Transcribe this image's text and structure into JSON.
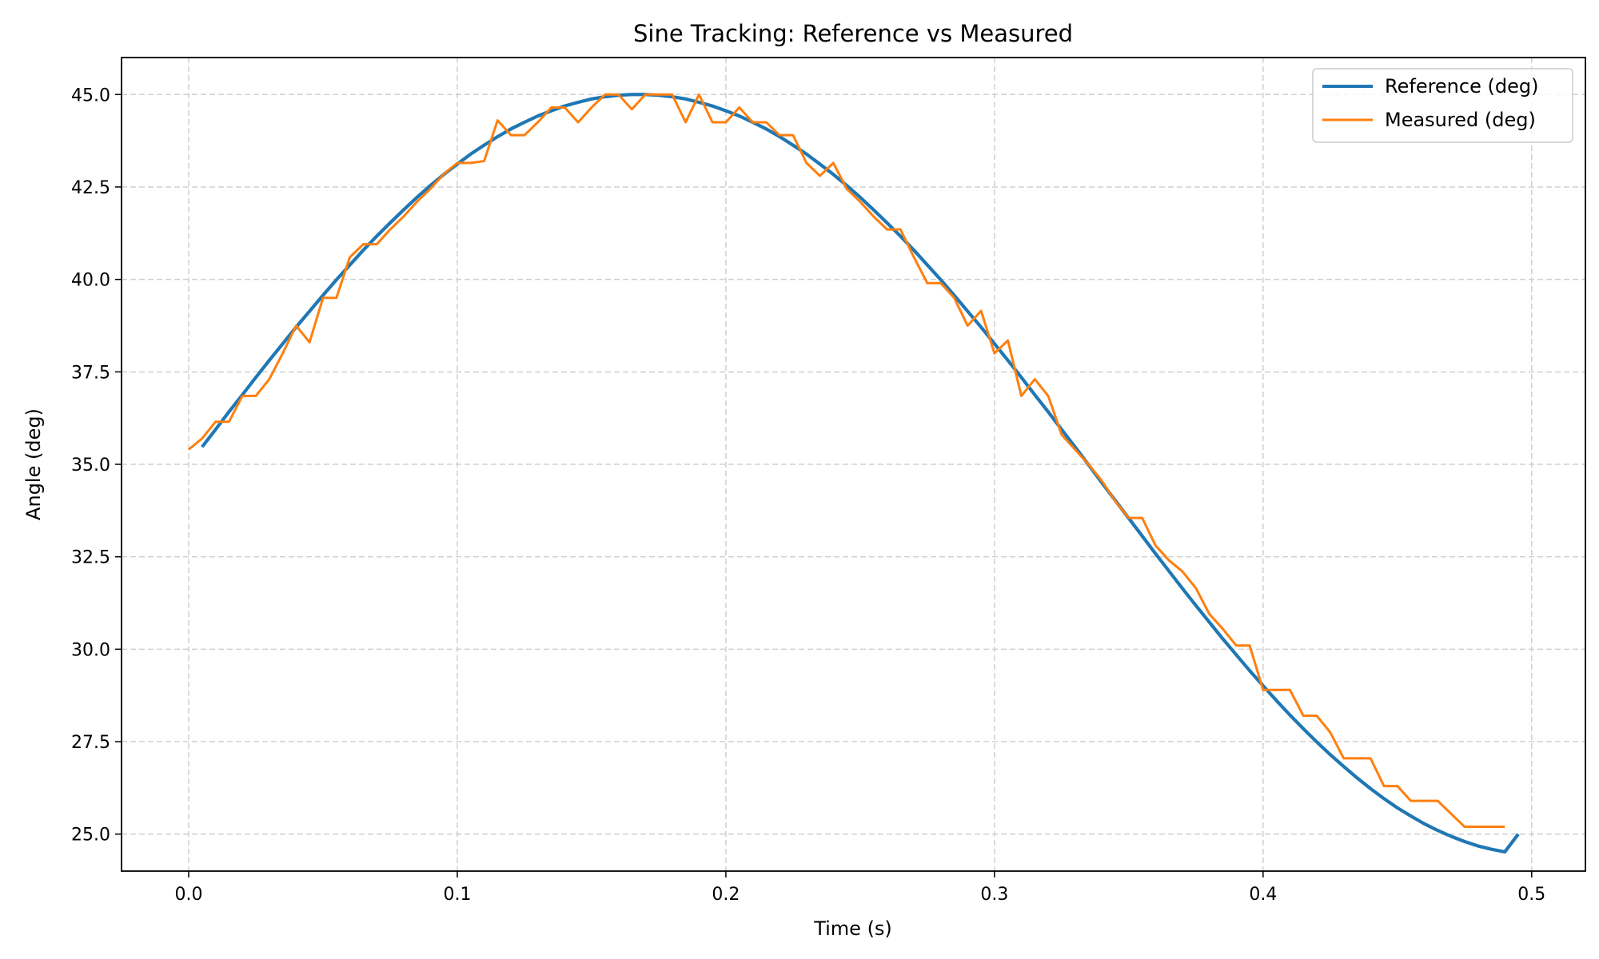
{
  "chart_data": {
    "type": "line",
    "title": "Sine Tracking: Reference vs Measured",
    "xlabel": "Time (s)",
    "ylabel": "Angle (deg)",
    "xlim": [
      -0.025,
      0.52
    ],
    "ylim": [
      24.0,
      46.0
    ],
    "xticks": [
      0.0,
      0.1,
      0.2,
      0.3,
      0.4,
      0.5
    ],
    "xtick_labels": [
      "0.0",
      "0.1",
      "0.2",
      "0.3",
      "0.4",
      "0.5"
    ],
    "yticks": [
      25.0,
      27.5,
      30.0,
      32.5,
      35.0,
      37.5,
      40.0,
      42.5,
      45.0
    ],
    "ytick_labels": [
      "25.0",
      "27.5",
      "30.0",
      "32.5",
      "35.0",
      "37.5",
      "40.0",
      "42.5",
      "45.0"
    ],
    "grid": true,
    "legend_position": "top-right",
    "series": [
      {
        "name": "Reference (deg)",
        "color": "#1f77b4",
        "x": [
          0.005,
          0.01,
          0.015,
          0.02,
          0.025,
          0.03,
          0.035,
          0.04,
          0.045,
          0.05,
          0.055,
          0.06,
          0.065,
          0.07,
          0.075,
          0.08,
          0.085,
          0.09,
          0.095,
          0.1,
          0.105,
          0.11,
          0.115,
          0.12,
          0.125,
          0.13,
          0.135,
          0.14,
          0.145,
          0.15,
          0.155,
          0.16,
          0.165,
          0.17,
          0.175,
          0.18,
          0.185,
          0.19,
          0.195,
          0.2,
          0.205,
          0.21,
          0.215,
          0.22,
          0.225,
          0.23,
          0.235,
          0.24,
          0.245,
          0.25,
          0.255,
          0.26,
          0.265,
          0.27,
          0.275,
          0.28,
          0.285,
          0.29,
          0.295,
          0.3,
          0.305,
          0.31,
          0.315,
          0.32,
          0.325,
          0.33,
          0.335,
          0.34,
          0.345,
          0.35,
          0.355,
          0.36,
          0.365,
          0.37,
          0.375,
          0.38,
          0.385,
          0.39,
          0.395,
          0.4,
          0.405,
          0.41,
          0.415,
          0.42,
          0.425,
          0.43,
          0.435,
          0.44,
          0.445,
          0.45,
          0.455,
          0.46,
          0.465,
          0.47,
          0.475,
          0.48,
          0.485,
          0.49,
          0.495
        ],
        "y": [
          35.47,
          35.94,
          36.42,
          36.88,
          37.35,
          37.81,
          38.26,
          38.71,
          39.14,
          39.57,
          39.99,
          40.39,
          40.79,
          41.17,
          41.53,
          41.88,
          42.22,
          42.54,
          42.84,
          43.12,
          43.39,
          43.63,
          43.86,
          44.07,
          44.25,
          44.42,
          44.56,
          44.69,
          44.79,
          44.88,
          44.94,
          44.98,
          45.0,
          45.0,
          44.98,
          44.94,
          44.88,
          44.79,
          44.69,
          44.56,
          44.42,
          44.25,
          44.07,
          43.86,
          43.63,
          43.39,
          43.12,
          42.84,
          42.54,
          42.22,
          41.88,
          41.53,
          41.17,
          40.79,
          40.39,
          39.99,
          39.57,
          39.14,
          38.71,
          38.26,
          37.81,
          37.35,
          36.88,
          36.42,
          35.94,
          35.47,
          34.99,
          34.5,
          34.02,
          33.54,
          33.06,
          32.58,
          32.11,
          31.64,
          31.18,
          30.73,
          30.28,
          29.85,
          29.42,
          29.01,
          28.61,
          28.22,
          27.85,
          27.49,
          27.15,
          26.83,
          26.52,
          26.23,
          25.96,
          25.71,
          25.49,
          25.28,
          25.1,
          24.94,
          24.8,
          24.68,
          24.59,
          24.52,
          25.0
        ]
      },
      {
        "name": "Measured (deg)",
        "color": "#ff7f0e",
        "x": [
          0.0,
          0.005,
          0.01,
          0.015,
          0.02,
          0.025,
          0.03,
          0.035,
          0.04,
          0.045,
          0.05,
          0.055,
          0.06,
          0.065,
          0.07,
          0.075,
          0.08,
          0.085,
          0.09,
          0.095,
          0.1,
          0.105,
          0.11,
          0.115,
          0.12,
          0.125,
          0.13,
          0.135,
          0.14,
          0.145,
          0.15,
          0.155,
          0.16,
          0.165,
          0.17,
          0.175,
          0.18,
          0.185,
          0.19,
          0.195,
          0.2,
          0.205,
          0.21,
          0.215,
          0.22,
          0.225,
          0.23,
          0.235,
          0.24,
          0.245,
          0.25,
          0.255,
          0.26,
          0.265,
          0.27,
          0.275,
          0.28,
          0.285,
          0.29,
          0.295,
          0.3,
          0.305,
          0.31,
          0.315,
          0.32,
          0.325,
          0.33,
          0.335,
          0.34,
          0.345,
          0.35,
          0.355,
          0.36,
          0.365,
          0.37,
          0.375,
          0.38,
          0.385,
          0.39,
          0.395,
          0.4,
          0.405,
          0.41,
          0.415,
          0.42,
          0.425,
          0.43,
          0.435,
          0.44,
          0.445,
          0.45,
          0.455,
          0.46,
          0.465,
          0.47,
          0.475,
          0.48,
          0.485,
          0.49
        ],
        "y": [
          35.4,
          35.7,
          36.15,
          36.15,
          36.85,
          36.85,
          37.3,
          38.0,
          38.75,
          38.3,
          39.5,
          39.5,
          40.6,
          40.95,
          40.95,
          41.35,
          41.7,
          42.1,
          42.45,
          42.85,
          43.15,
          43.15,
          43.2,
          44.3,
          43.9,
          43.9,
          44.25,
          44.65,
          44.65,
          44.25,
          44.65,
          45.0,
          45.0,
          44.6,
          45.0,
          45.0,
          45.0,
          44.25,
          45.0,
          44.25,
          44.25,
          44.65,
          44.25,
          44.25,
          43.9,
          43.9,
          43.15,
          42.8,
          43.15,
          42.45,
          42.1,
          41.7,
          41.35,
          41.35,
          40.6,
          39.9,
          39.9,
          39.5,
          38.75,
          39.15,
          38.0,
          38.35,
          36.85,
          37.3,
          36.85,
          35.8,
          35.4,
          35.0,
          34.55,
          34.0,
          33.55,
          33.55,
          32.8,
          32.4,
          32.1,
          31.65,
          30.95,
          30.55,
          30.1,
          30.1,
          28.9,
          28.9,
          28.9,
          28.2,
          28.2,
          27.75,
          27.05,
          27.05,
          27.05,
          26.3,
          26.3,
          25.9,
          25.9,
          25.9,
          25.55,
          25.2,
          25.2,
          25.2,
          25.2
        ]
      }
    ]
  }
}
